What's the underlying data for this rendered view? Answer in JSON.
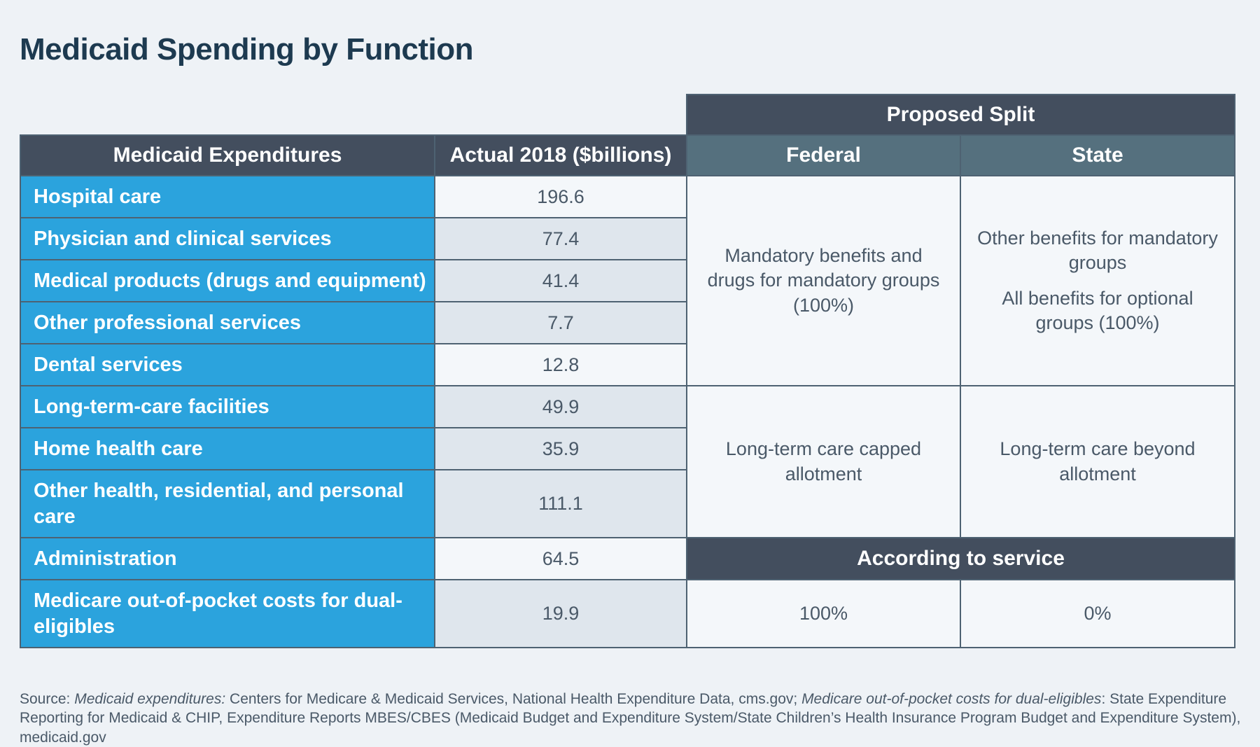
{
  "title": "Medicaid Spending by Function",
  "header": {
    "proposed_split": "Proposed Split",
    "col_expenditures": "Medicaid Expenditures",
    "col_actual": "Actual 2018 ($billions)",
    "col_federal": "Federal",
    "col_state": "State"
  },
  "rows": [
    {
      "label": "Hospital care",
      "value": "196.6"
    },
    {
      "label": "Physician and clinical services",
      "value": "77.4"
    },
    {
      "label": "Medical products (drugs and equipment)",
      "value": "41.4"
    },
    {
      "label": "Other professional services",
      "value": "7.7"
    },
    {
      "label": "Dental services",
      "value": "12.8"
    },
    {
      "label": "Long-term-care facilities",
      "value": "49.9"
    },
    {
      "label": "Home health care",
      "value": "35.9"
    },
    {
      "label": "Other health, residential, and personal care",
      "value": "111.1"
    },
    {
      "label": "Administration",
      "value": "64.5"
    },
    {
      "label": "Medicare out-of-pocket costs for dual-eligibles",
      "value": "19.9"
    }
  ],
  "splits": {
    "group1_federal": "Mandatory benefits and drugs for mandatory groups (100%)",
    "group1_state_a": "Other benefits for mandatory groups",
    "group1_state_b": "All benefits for optional groups (100%)",
    "group2_federal": "Long-term care capped allotment",
    "group2_state": "Long-term care beyond allotment",
    "according": "According to service",
    "dual_federal": "100%",
    "dual_state": "0%"
  },
  "source": {
    "prefix": "Source: ",
    "label1": "Medicaid expenditures:",
    "text1": " Centers for Medicare & Medicaid Services, National Health Expenditure Data, cms.gov; ",
    "label2": "Medicare out-of-pocket costs for dual-eligibles",
    "text2": ": State Expenditure Reporting for Medicaid & CHIP, Expenditure Reports MBES/CBES (Medicaid Budget and Expenditure System/State Children’s Health Insurance Program Budget and Expenditure System), medicaid.gov"
  },
  "colors": {
    "label_blue": "#2ba3dd",
    "header_dark": "#434e5e",
    "header_teal": "#55707e",
    "title": "#1d3a50"
  }
}
